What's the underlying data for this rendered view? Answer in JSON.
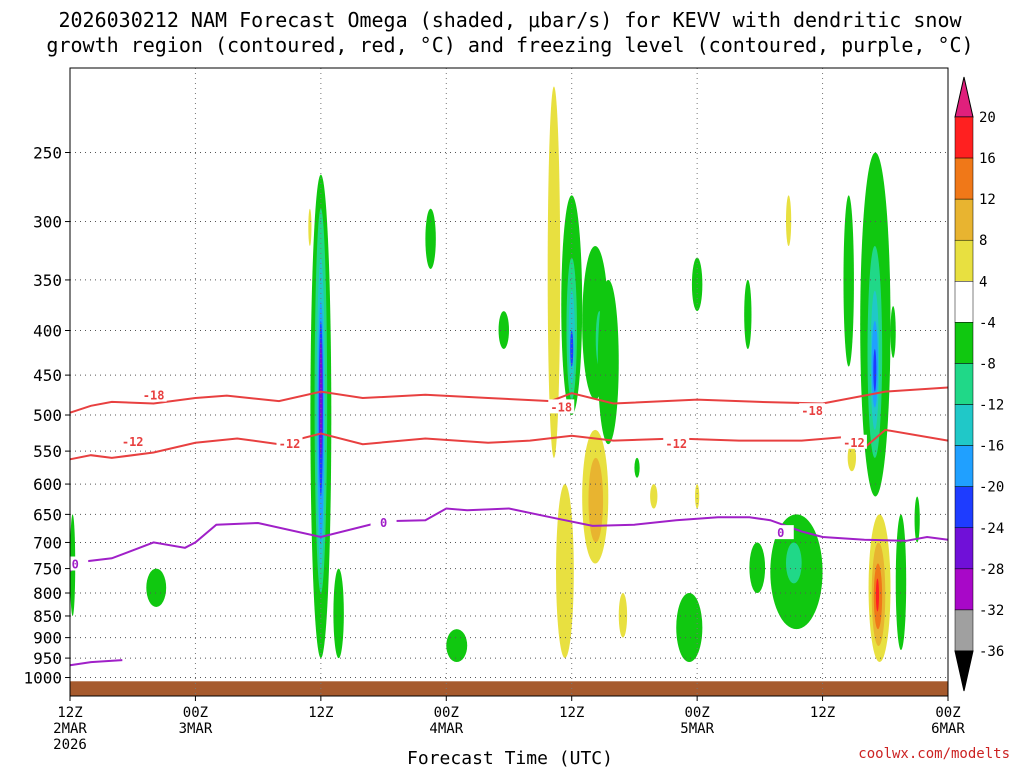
{
  "chart_data": {
    "type": "heatmap",
    "title": "2026030212 NAM Forecast Omega (shaded, μbar/s) for KEVV with dendritic snow",
    "subtitle": "growth region (contoured, red, °C) and freezing level (contoured, purple, °C)",
    "xlabel": "Forecast Time (UTC)",
    "ylabel": "",
    "credit": "coolwx.com/modelts",
    "x_ticks": [
      {
        "hours": 0,
        "time": "12Z",
        "date": "2MAR",
        "year": "2026"
      },
      {
        "hours": 12,
        "time": "00Z",
        "date": "3MAR",
        "year": ""
      },
      {
        "hours": 24,
        "time": "12Z",
        "date": "",
        "year": ""
      },
      {
        "hours": 36,
        "time": "00Z",
        "date": "4MAR",
        "year": ""
      },
      {
        "hours": 48,
        "time": "12Z",
        "date": "",
        "year": ""
      },
      {
        "hours": 60,
        "time": "00Z",
        "date": "5MAR",
        "year": ""
      },
      {
        "hours": 72,
        "time": "12Z",
        "date": "",
        "year": ""
      },
      {
        "hours": 84,
        "time": "00Z",
        "date": "6MAR",
        "year": ""
      }
    ],
    "x_range_hours": [
      0,
      84
    ],
    "y_axis": "pressure (mb), log scale, inverted",
    "y_range_mb": [
      1050,
      200
    ],
    "y_ticks_mb": [
      250,
      300,
      350,
      400,
      450,
      500,
      550,
      600,
      650,
      700,
      750,
      800,
      850,
      900,
      950,
      1000
    ],
    "grid": true,
    "colorbar": {
      "labels": [
        "20",
        "16",
        "12",
        "8",
        "4",
        "-4",
        "-8",
        "-12",
        "-16",
        "-20",
        "-24",
        "-28",
        "-32",
        "-36"
      ],
      "colors": [
        "#ff2020",
        "#f07818",
        "#e8b430",
        "#e8e040",
        "#ffffff",
        "#10c810",
        "#20d888",
        "#20c8c8",
        "#20a0ff",
        "#1e3cff",
        "#7010d8",
        "#a808c8",
        "#a0a0a0"
      ],
      "top_arrow_color": "#e0207c",
      "bottom_arrow_color": "#000000"
    },
    "contours": [
      {
        "name": "-18",
        "color": "#e84040",
        "points": [
          [
            0,
            497
          ],
          [
            2,
            488
          ],
          [
            4,
            483
          ],
          [
            8,
            485
          ],
          [
            12,
            478
          ],
          [
            15,
            475
          ],
          [
            20,
            482
          ],
          [
            24,
            470
          ],
          [
            28,
            478
          ],
          [
            34,
            474
          ],
          [
            40,
            478
          ],
          [
            46,
            482
          ],
          [
            48,
            472
          ],
          [
            52,
            485
          ],
          [
            60,
            480
          ],
          [
            66,
            483
          ],
          [
            72,
            485
          ],
          [
            78,
            470
          ],
          [
            84,
            465
          ]
        ],
        "labels": [
          [
            8,
            475
          ],
          [
            47,
            490
          ],
          [
            71,
            495
          ]
        ]
      },
      {
        "name": "-12",
        "color": "#e84040",
        "points": [
          [
            0,
            562
          ],
          [
            2,
            556
          ],
          [
            4,
            560
          ],
          [
            8,
            552
          ],
          [
            12,
            538
          ],
          [
            16,
            532
          ],
          [
            20,
            540
          ],
          [
            24,
            525
          ],
          [
            28,
            540
          ],
          [
            34,
            532
          ],
          [
            40,
            538
          ],
          [
            44,
            535
          ],
          [
            48,
            528
          ],
          [
            52,
            535
          ],
          [
            58,
            532
          ],
          [
            64,
            535
          ],
          [
            70,
            535
          ],
          [
            74,
            530
          ],
          [
            76,
            545
          ],
          [
            78,
            520
          ],
          [
            84,
            535
          ]
        ],
        "labels": [
          [
            6,
            537
          ],
          [
            21,
            540
          ],
          [
            58,
            540
          ],
          [
            75,
            538
          ]
        ]
      },
      {
        "name": "0",
        "color": "#a020c8",
        "points": [
          [
            0,
            755
          ],
          [
            1,
            737
          ],
          [
            4,
            730
          ],
          [
            8,
            700
          ],
          [
            11,
            710
          ],
          [
            12,
            700
          ],
          [
            14,
            668
          ],
          [
            18,
            665
          ],
          [
            24,
            690
          ],
          [
            30,
            662
          ],
          [
            34,
            660
          ],
          [
            36,
            640
          ],
          [
            38,
            643
          ],
          [
            42,
            640
          ],
          [
            46,
            655
          ],
          [
            50,
            670
          ],
          [
            54,
            668
          ],
          [
            58,
            660
          ],
          [
            62,
            655
          ],
          [
            65,
            655
          ],
          [
            67,
            660
          ],
          [
            70,
            680
          ],
          [
            72,
            690
          ],
          [
            76,
            695
          ],
          [
            80,
            697
          ],
          [
            82,
            690
          ],
          [
            84,
            695
          ]
        ],
        "labels": [
          [
            0.5,
            742
          ],
          [
            30,
            665
          ],
          [
            68,
            683
          ]
        ]
      },
      {
        "name": "0-low",
        "color": "#a020c8",
        "points": [
          [
            0,
            968
          ],
          [
            2,
            960
          ],
          [
            5,
            955
          ]
        ],
        "labels": []
      }
    ],
    "shaded_features": [
      {
        "color": "#10c810",
        "x": [
          0,
          0.5
        ],
        "p": [
          650,
          850
        ]
      },
      {
        "color": "#10c810",
        "x": [
          7.3,
          9.2
        ],
        "p": [
          750,
          830
        ]
      },
      {
        "color": "#e8e040",
        "x": [
          22.8,
          23.1
        ],
        "p": [
          290,
          320
        ]
      },
      {
        "color": "#10c810",
        "x": [
          23,
          25
        ],
        "p": [
          265,
          950
        ]
      },
      {
        "color": "#20d888",
        "x": [
          23.4,
          24.6
        ],
        "p": [
          290,
          800
        ]
      },
      {
        "color": "#20c8c8",
        "x": [
          23.6,
          24.4
        ],
        "p": [
          330,
          750
        ]
      },
      {
        "color": "#20a0ff",
        "x": [
          23.7,
          24.3
        ],
        "p": [
          370,
          700
        ]
      },
      {
        "color": "#1e3cff",
        "x": [
          23.8,
          24.2
        ],
        "p": [
          390,
          620
        ]
      },
      {
        "color": "#7010d8",
        "x": [
          23.9,
          24.1
        ],
        "p": [
          410,
          560
        ]
      },
      {
        "color": "#10c810",
        "x": [
          25.2,
          26.2
        ],
        "p": [
          750,
          950
        ]
      },
      {
        "color": "#10c810",
        "x": [
          34,
          35
        ],
        "p": [
          290,
          340
        ]
      },
      {
        "color": "#10c810",
        "x": [
          36,
          38
        ],
        "p": [
          880,
          960
        ]
      },
      {
        "color": "#10c810",
        "x": [
          41,
          42
        ],
        "p": [
          380,
          420
        ]
      },
      {
        "color": "#e8e040",
        "x": [
          45.7,
          46.9
        ],
        "p": [
          210,
          560
        ]
      },
      {
        "color": "#e8e040",
        "x": [
          46.5,
          48.2
        ],
        "p": [
          600,
          950
        ]
      },
      {
        "color": "#10c810",
        "x": [
          47,
          49
        ],
        "p": [
          280,
          500
        ]
      },
      {
        "color": "#20d888",
        "x": [
          47.5,
          48.5
        ],
        "p": [
          330,
          480
        ]
      },
      {
        "color": "#20c8c8",
        "x": [
          47.7,
          48.3
        ],
        "p": [
          360,
          460
        ]
      },
      {
        "color": "#1e3cff",
        "x": [
          47.9,
          48.1
        ],
        "p": [
          400,
          440
        ]
      },
      {
        "color": "#10c810",
        "x": [
          49,
          51.5
        ],
        "p": [
          320,
          480
        ]
      },
      {
        "color": "#20d888",
        "x": [
          50.3,
          51
        ],
        "p": [
          380,
          440
        ]
      },
      {
        "color": "#e8e040",
        "x": [
          49,
          51.5
        ],
        "p": [
          520,
          740
        ]
      },
      {
        "color": "#e8b430",
        "x": [
          49.6,
          51
        ],
        "p": [
          560,
          700
        ]
      },
      {
        "color": "#10c810",
        "x": [
          50.5,
          52.5
        ],
        "p": [
          350,
          540
        ]
      },
      {
        "color": "#10c810",
        "x": [
          54,
          54.5
        ],
        "p": [
          560,
          590
        ]
      },
      {
        "color": "#e8e040",
        "x": [
          55.5,
          56.2
        ],
        "p": [
          600,
          640
        ]
      },
      {
        "color": "#e8e040",
        "x": [
          52.5,
          53.3
        ],
        "p": [
          800,
          900
        ]
      },
      {
        "color": "#10c810",
        "x": [
          58,
          60.5
        ],
        "p": [
          800,
          960
        ]
      },
      {
        "color": "#10c810",
        "x": [
          59.5,
          60.5
        ],
        "p": [
          330,
          380
        ]
      },
      {
        "color": "#e8e040",
        "x": [
          59.8,
          60.2
        ],
        "p": [
          600,
          640
        ]
      },
      {
        "color": "#10c810",
        "x": [
          64.5,
          65.2
        ],
        "p": [
          350,
          420
        ]
      },
      {
        "color": "#10c810",
        "x": [
          65,
          66.5
        ],
        "p": [
          700,
          800
        ]
      },
      {
        "color": "#10c810",
        "x": [
          67,
          72
        ],
        "p": [
          650,
          880
        ]
      },
      {
        "color": "#20d888",
        "x": [
          68.5,
          70
        ],
        "p": [
          700,
          780
        ]
      },
      {
        "color": "#e8e040",
        "x": [
          68.5,
          69
        ],
        "p": [
          280,
          320
        ]
      },
      {
        "color": "#10c810",
        "x": [
          74,
          75
        ],
        "p": [
          280,
          440
        ]
      },
      {
        "color": "#e8e040",
        "x": [
          74.4,
          75.2
        ],
        "p": [
          540,
          580
        ]
      },
      {
        "color": "#10c810",
        "x": [
          75.6,
          78.5
        ],
        "p": [
          250,
          620
        ]
      },
      {
        "color": "#20d888",
        "x": [
          76.3,
          77.7
        ],
        "p": [
          320,
          560
        ]
      },
      {
        "color": "#20c8c8",
        "x": [
          76.6,
          77.4
        ],
        "p": [
          360,
          520
        ]
      },
      {
        "color": "#20a0ff",
        "x": [
          76.7,
          77.3
        ],
        "p": [
          390,
          490
        ]
      },
      {
        "color": "#1e3cff",
        "x": [
          76.9,
          77.1
        ],
        "p": [
          420,
          470
        ]
      },
      {
        "color": "#10c810",
        "x": [
          78.5,
          79
        ],
        "p": [
          375,
          430
        ]
      },
      {
        "color": "#e8e040",
        "x": [
          76.4,
          78.5
        ],
        "p": [
          650,
          960
        ]
      },
      {
        "color": "#e8b430",
        "x": [
          76.7,
          78
        ],
        "p": [
          700,
          920
        ]
      },
      {
        "color": "#f07818",
        "x": [
          76.9,
          77.7
        ],
        "p": [
          740,
          880
        ]
      },
      {
        "color": "#ff2020",
        "x": [
          77.1,
          77.4
        ],
        "p": [
          770,
          840
        ]
      },
      {
        "color": "#10c810",
        "x": [
          79,
          80
        ],
        "p": [
          650,
          930
        ]
      },
      {
        "color": "#10c810",
        "x": [
          80.8,
          81.3
        ],
        "p": [
          620,
          700
        ]
      }
    ],
    "terrain": {
      "color": "#a65a2d",
      "p_top": 1010
    }
  }
}
